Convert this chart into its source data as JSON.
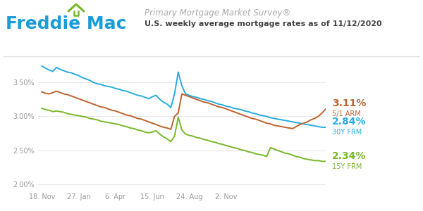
{
  "title_line1": "Primary Mortgage Market Survey®",
  "title_line2": "U.S. weekly average mortgage rates as of 11/12/2020",
  "freddie_blue": "#1a9cd8",
  "freddie_green": "#78b82a",
  "line_30y_color": "#29abe2",
  "line_15y_color": "#78b82a",
  "line_arm_color": "#c0622e",
  "bg_color": "#ffffff",
  "grid_color": "#e8e8e8",
  "yticks": [
    2.0,
    2.5,
    3.0,
    3.5
  ],
  "ytick_labels": [
    "2.00%",
    "2.50%",
    "3.00%",
    "3.50%"
  ],
  "xtick_labels": [
    "18. Nov",
    "27. Jan",
    "6. Apr",
    "15. Jun",
    "24. Aug",
    "2. Nov"
  ],
  "label_30y_pct": "2.84%",
  "label_30y_name": "30Y FRM",
  "label_15y_pct": "2.34%",
  "label_15y_name": "15Y FRM",
  "label_arm_pct": "3.11%",
  "label_arm_name": "5/1 ARM",
  "frm30": [
    3.74,
    3.71,
    3.68,
    3.66,
    3.72,
    3.69,
    3.67,
    3.65,
    3.64,
    3.62,
    3.6,
    3.57,
    3.55,
    3.53,
    3.5,
    3.48,
    3.47,
    3.45,
    3.44,
    3.43,
    3.41,
    3.4,
    3.38,
    3.37,
    3.35,
    3.33,
    3.31,
    3.3,
    3.28,
    3.26,
    3.29,
    3.31,
    3.25,
    3.21,
    3.18,
    3.13,
    3.33,
    3.65,
    3.45,
    3.33,
    3.31,
    3.29,
    3.28,
    3.26,
    3.25,
    3.23,
    3.22,
    3.2,
    3.18,
    3.17,
    3.15,
    3.14,
    3.12,
    3.11,
    3.1,
    3.08,
    3.07,
    3.05,
    3.04,
    3.02,
    3.01,
    3.0,
    2.98,
    2.97,
    2.96,
    2.95,
    2.94,
    2.93,
    2.92,
    2.91,
    2.9,
    2.89,
    2.88,
    2.87,
    2.86,
    2.85,
    2.84,
    2.84
  ],
  "frm15": [
    3.12,
    3.1,
    3.09,
    3.07,
    3.08,
    3.07,
    3.06,
    3.04,
    3.03,
    3.02,
    3.01,
    3.0,
    2.99,
    2.97,
    2.96,
    2.95,
    2.93,
    2.92,
    2.91,
    2.9,
    2.89,
    2.88,
    2.86,
    2.85,
    2.83,
    2.82,
    2.8,
    2.79,
    2.77,
    2.76,
    2.77,
    2.79,
    2.74,
    2.7,
    2.67,
    2.63,
    2.71,
    2.99,
    2.8,
    2.74,
    2.72,
    2.71,
    2.69,
    2.68,
    2.66,
    2.65,
    2.63,
    2.62,
    2.6,
    2.59,
    2.57,
    2.56,
    2.54,
    2.53,
    2.51,
    2.5,
    2.48,
    2.47,
    2.45,
    2.44,
    2.43,
    2.41,
    2.54,
    2.52,
    2.5,
    2.48,
    2.46,
    2.45,
    2.43,
    2.41,
    2.4,
    2.38,
    2.37,
    2.36,
    2.35,
    2.35,
    2.34,
    2.34
  ],
  "arm51": [
    3.36,
    3.34,
    3.33,
    3.35,
    3.37,
    3.35,
    3.33,
    3.32,
    3.3,
    3.28,
    3.26,
    3.24,
    3.22,
    3.2,
    3.18,
    3.16,
    3.14,
    3.13,
    3.11,
    3.09,
    3.08,
    3.06,
    3.04,
    3.02,
    3.01,
    2.99,
    2.97,
    2.96,
    2.94,
    2.92,
    2.9,
    2.88,
    2.86,
    2.84,
    2.83,
    2.81,
    3.0,
    3.05,
    3.33,
    3.31,
    3.29,
    3.27,
    3.25,
    3.23,
    3.21,
    3.2,
    3.18,
    3.16,
    3.14,
    3.13,
    3.11,
    3.09,
    3.07,
    3.05,
    3.03,
    3.01,
    2.99,
    2.97,
    2.96,
    2.94,
    2.92,
    2.9,
    2.89,
    2.87,
    2.86,
    2.85,
    2.84,
    2.83,
    2.82,
    2.85,
    2.88,
    2.9,
    2.92,
    2.95,
    2.97,
    3.0,
    3.05,
    3.11
  ]
}
